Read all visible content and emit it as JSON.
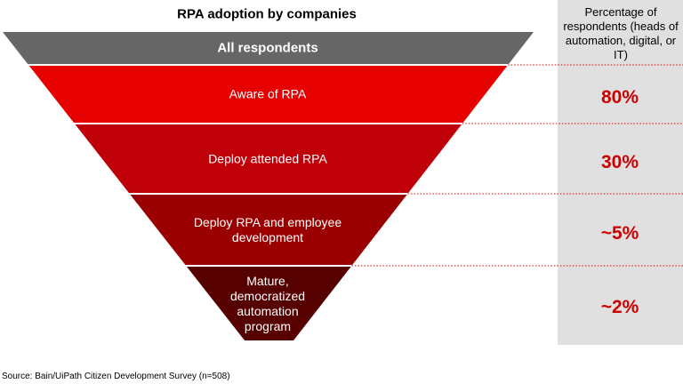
{
  "chart_data": {
    "type": "funnel",
    "title": "RPA adoption by companies",
    "top_stage": "All respondents",
    "value_header": "Percentage of respondents (heads of automation, digital, or IT)",
    "categories": [
      "Aware of RPA",
      "Deploy attended RPA",
      "Deploy RPA and employee development",
      "Mature, democratized automation program"
    ],
    "values": [
      80,
      30,
      5,
      2
    ],
    "value_labels": [
      "80%",
      "30%",
      "~5%",
      "~2%"
    ],
    "colors": [
      "#e60000",
      "#c00008",
      "#9a0000",
      "#560000"
    ],
    "top_color": "#666666",
    "source": "Source: Bain/UiPath Citizen Development Survey (n=508)"
  }
}
